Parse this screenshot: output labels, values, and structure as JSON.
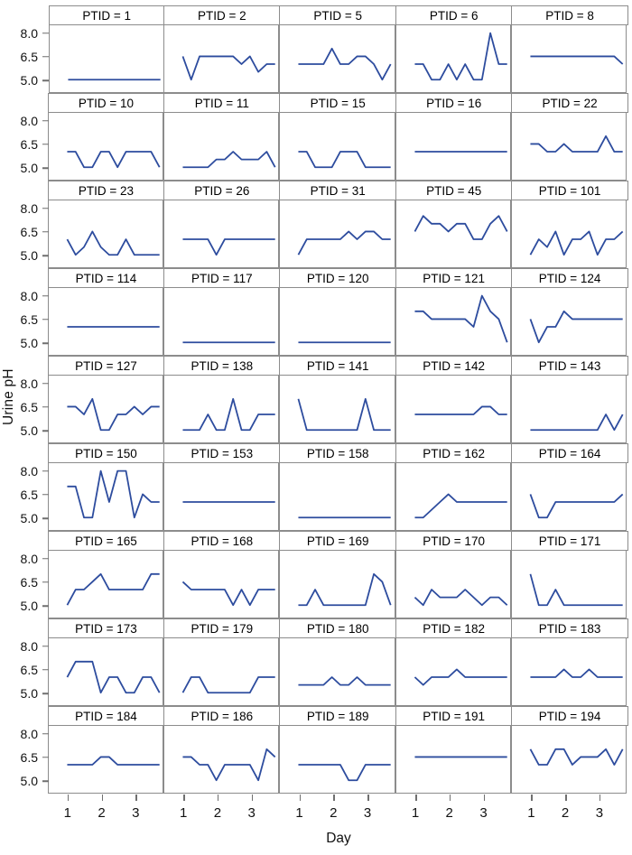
{
  "figure": {
    "ylabel": "Urine pH",
    "xlabel": "Day",
    "line_color": "#2d4c9e",
    "border_color": "#8c8c8c",
    "tick_color": "#6f6f6f",
    "yticks": [
      "8.0",
      "6.5",
      "5.0"
    ],
    "ytick_values": [
      8.0,
      6.5,
      5.0
    ],
    "xticks": [
      "1",
      "2",
      "3"
    ],
    "xtick_values": [
      1,
      2,
      3
    ]
  },
  "chart_data": {
    "type": "line",
    "title": "",
    "xlabel": "Day",
    "ylabel": "Urine pH",
    "grid": false,
    "legend": "none",
    "xlim": [
      0.45,
      3.85
    ],
    "ylim": [
      4.2,
      8.5
    ],
    "x": [
      1,
      1.25,
      1.5,
      1.75,
      2,
      2.25,
      2.5,
      2.75,
      3,
      3.25,
      3.5,
      3.75
    ],
    "panels": [
      {
        "label": "PTID = 1",
        "ptid": 1,
        "values": [
          5,
          5,
          5,
          5,
          5,
          5,
          5,
          5,
          5,
          5,
          5,
          5
        ]
      },
      {
        "label": "PTID = 2",
        "ptid": 2,
        "values": [
          6.5,
          5,
          6.5,
          6.5,
          6.5,
          6.5,
          6.5,
          6,
          6.5,
          5.5,
          6,
          6
        ]
      },
      {
        "label": "PTID = 5",
        "ptid": 5,
        "values": [
          6,
          6,
          6,
          6,
          7,
          6,
          6,
          6.5,
          6.5,
          6,
          5,
          6
        ]
      },
      {
        "label": "PTID = 6",
        "ptid": 6,
        "values": [
          6,
          6,
          5,
          5,
          6,
          5,
          6,
          5,
          5,
          8,
          6,
          6
        ]
      },
      {
        "label": "PTID = 8",
        "ptid": 8,
        "values": [
          6.5,
          6.5,
          6.5,
          6.5,
          6.5,
          6.5,
          6.5,
          6.5,
          6.5,
          6.5,
          6.5,
          6
        ]
      },
      {
        "label": "PTID = 10",
        "ptid": 10,
        "values": [
          6,
          6,
          5,
          5,
          6,
          6,
          5,
          6,
          6,
          6,
          6,
          5
        ]
      },
      {
        "label": "PTID = 11",
        "ptid": 11,
        "values": [
          5,
          5,
          5,
          5,
          5.5,
          5.5,
          6,
          5.5,
          5.5,
          5.5,
          6,
          5
        ]
      },
      {
        "label": "PTID = 15",
        "ptid": 15,
        "values": [
          6,
          6,
          5,
          5,
          5,
          6,
          6,
          6,
          5,
          5,
          5,
          5
        ]
      },
      {
        "label": "PTID = 16",
        "ptid": 16,
        "values": [
          6,
          6,
          6,
          6,
          6,
          6,
          6,
          6,
          6,
          6,
          6,
          6
        ]
      },
      {
        "label": "PTID = 22",
        "ptid": 22,
        "values": [
          6.5,
          6.5,
          6,
          6,
          6.5,
          6,
          6,
          6,
          6,
          7,
          6,
          6
        ]
      },
      {
        "label": "PTID = 23",
        "ptid": 23,
        "values": [
          6,
          5,
          5.5,
          6.5,
          5.5,
          5,
          5,
          6,
          5,
          5,
          5,
          5
        ]
      },
      {
        "label": "PTID = 26",
        "ptid": 26,
        "values": [
          6,
          6,
          6,
          6,
          5,
          6,
          6,
          6,
          6,
          6,
          6,
          6
        ]
      },
      {
        "label": "PTID = 31",
        "ptid": 31,
        "values": [
          5,
          6,
          6,
          6,
          6,
          6,
          6.5,
          6,
          6.5,
          6.5,
          6,
          6
        ]
      },
      {
        "label": "PTID = 45",
        "ptid": 45,
        "values": [
          6.5,
          7.5,
          7,
          7,
          6.5,
          7,
          7,
          6,
          6,
          7,
          7.5,
          6.5
        ]
      },
      {
        "label": "PTID = 101",
        "ptid": 101,
        "values": [
          5,
          6,
          5.5,
          6.5,
          5,
          6,
          6,
          6.5,
          5,
          6,
          6,
          6.5
        ]
      },
      {
        "label": "PTID = 114",
        "ptid": 114,
        "values": [
          6,
          6,
          6,
          6,
          6,
          6,
          6,
          6,
          6,
          6,
          6,
          6
        ]
      },
      {
        "label": "PTID = 117",
        "ptid": 117,
        "values": [
          5,
          5,
          5,
          5,
          5,
          5,
          5,
          5,
          5,
          5,
          5,
          5
        ]
      },
      {
        "label": "PTID = 120",
        "ptid": 120,
        "values": [
          5,
          5,
          5,
          5,
          5,
          5,
          5,
          5,
          5,
          5,
          5,
          5
        ]
      },
      {
        "label": "PTID = 121",
        "ptid": 121,
        "values": [
          7,
          7,
          6.5,
          6.5,
          6.5,
          6.5,
          6.5,
          6,
          8,
          7,
          6.5,
          5
        ]
      },
      {
        "label": "PTID = 124",
        "ptid": 124,
        "values": [
          6.5,
          5,
          6,
          6,
          7,
          6.5,
          6.5,
          6.5,
          6.5,
          6.5,
          6.5,
          6.5
        ]
      },
      {
        "label": "PTID = 127",
        "ptid": 127,
        "values": [
          6.5,
          6.5,
          6,
          7,
          5,
          5,
          6,
          6,
          6.5,
          6,
          6.5,
          6.5
        ]
      },
      {
        "label": "PTID = 138",
        "ptid": 138,
        "values": [
          5,
          5,
          5,
          6,
          5,
          5,
          7,
          5,
          5,
          6,
          6,
          6
        ]
      },
      {
        "label": "PTID = 141",
        "ptid": 141,
        "values": [
          7,
          5,
          5,
          5,
          5,
          5,
          5,
          5,
          7,
          5,
          5,
          5
        ]
      },
      {
        "label": "PTID = 142",
        "ptid": 142,
        "values": [
          6,
          6,
          6,
          6,
          6,
          6,
          6,
          6,
          6.5,
          6.5,
          6,
          6
        ]
      },
      {
        "label": "PTID = 143",
        "ptid": 143,
        "values": [
          5,
          5,
          5,
          5,
          5,
          5,
          5,
          5,
          5,
          6,
          5,
          6
        ]
      },
      {
        "label": "PTID = 150",
        "ptid": 150,
        "values": [
          7,
          7,
          5,
          5,
          8,
          6,
          8,
          8,
          5,
          6.5,
          6,
          6
        ]
      },
      {
        "label": "PTID = 153",
        "ptid": 153,
        "values": [
          6,
          6,
          6,
          6,
          6,
          6,
          6,
          6,
          6,
          6,
          6,
          6
        ]
      },
      {
        "label": "PTID = 158",
        "ptid": 158,
        "values": [
          5,
          5,
          5,
          5,
          5,
          5,
          5,
          5,
          5,
          5,
          5,
          5
        ]
      },
      {
        "label": "PTID = 162",
        "ptid": 162,
        "values": [
          5,
          5,
          5.5,
          6,
          6.5,
          6,
          6,
          6,
          6,
          6,
          6,
          6
        ]
      },
      {
        "label": "PTID = 164",
        "ptid": 164,
        "values": [
          6.5,
          5,
          5,
          6,
          6,
          6,
          6,
          6,
          6,
          6,
          6,
          6.5
        ]
      },
      {
        "label": "PTID = 165",
        "ptid": 165,
        "values": [
          5,
          6,
          6,
          6.5,
          7,
          6,
          6,
          6,
          6,
          6,
          7,
          7
        ]
      },
      {
        "label": "PTID = 168",
        "ptid": 168,
        "values": [
          6.5,
          6,
          6,
          6,
          6,
          6,
          5,
          6,
          5,
          6,
          6,
          6
        ]
      },
      {
        "label": "PTID = 169",
        "ptid": 169,
        "values": [
          5,
          5,
          6,
          5,
          5,
          5,
          5,
          5,
          5,
          7,
          6.5,
          5
        ]
      },
      {
        "label": "PTID = 170",
        "ptid": 170,
        "values": [
          5.5,
          5,
          6,
          5.5,
          5.5,
          5.5,
          6,
          5.5,
          5,
          5.5,
          5.5,
          5
        ]
      },
      {
        "label": "PTID = 171",
        "ptid": 171,
        "values": [
          7,
          5,
          5,
          6,
          5,
          5,
          5,
          5,
          5,
          5,
          5,
          5
        ]
      },
      {
        "label": "PTID = 173",
        "ptid": 173,
        "values": [
          6,
          7,
          7,
          7,
          5,
          6,
          6,
          5,
          5,
          6,
          6,
          5
        ]
      },
      {
        "label": "PTID = 179",
        "ptid": 179,
        "values": [
          5,
          6,
          6,
          5,
          5,
          5,
          5,
          5,
          5,
          6,
          6,
          6
        ]
      },
      {
        "label": "PTID = 180",
        "ptid": 180,
        "values": [
          5.5,
          5.5,
          5.5,
          5.5,
          6,
          5.5,
          5.5,
          6,
          5.5,
          5.5,
          5.5,
          5.5
        ]
      },
      {
        "label": "PTID = 182",
        "ptid": 182,
        "values": [
          6,
          5.5,
          6,
          6,
          6,
          6.5,
          6,
          6,
          6,
          6,
          6,
          6
        ]
      },
      {
        "label": "PTID = 183",
        "ptid": 183,
        "values": [
          6,
          6,
          6,
          6,
          6.5,
          6,
          6,
          6.5,
          6,
          6,
          6,
          6
        ]
      },
      {
        "label": "PTID = 184",
        "ptid": 184,
        "values": [
          6,
          6,
          6,
          6,
          6.5,
          6.5,
          6,
          6,
          6,
          6,
          6,
          6
        ]
      },
      {
        "label": "PTID = 186",
        "ptid": 186,
        "values": [
          6.5,
          6.5,
          6,
          6,
          5,
          6,
          6,
          6,
          6,
          5,
          7,
          6.5
        ]
      },
      {
        "label": "PTID = 189",
        "ptid": 189,
        "values": [
          6,
          6,
          6,
          6,
          6,
          6,
          5,
          5,
          6,
          6,
          6,
          6
        ]
      },
      {
        "label": "PTID = 191",
        "ptid": 191,
        "values": [
          6.5,
          6.5,
          6.5,
          6.5,
          6.5,
          6.5,
          6.5,
          6.5,
          6.5,
          6.5,
          6.5,
          6.5
        ]
      },
      {
        "label": "PTID = 194",
        "ptid": 194,
        "values": [
          7,
          6,
          6,
          7,
          7,
          6,
          6.5,
          6.5,
          6.5,
          7,
          6,
          7
        ]
      }
    ]
  }
}
